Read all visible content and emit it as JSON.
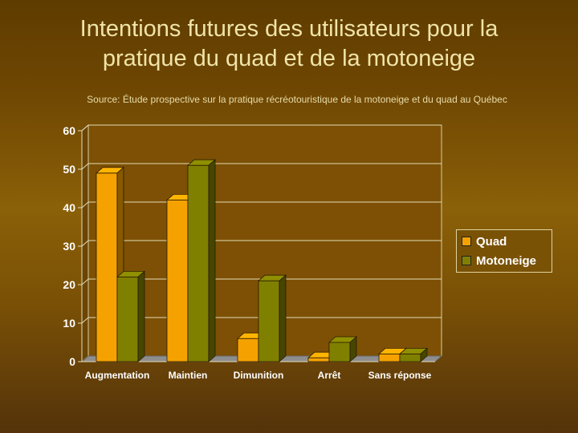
{
  "title_line1": "Intentions futures des utilisateurs pour la",
  "title_line2": "pratique du quad et de la motoneige",
  "source": "Source: Étude prospective sur la pratique récréotouristique de la motoneige et du quad au Québec",
  "legend": {
    "items": [
      "Quad",
      "Motoneige"
    ]
  },
  "colors": {
    "quad": "#f5a200",
    "motoneige": "#808000"
  },
  "chart_data": {
    "type": "bar",
    "title": "Intentions futures des utilisateurs pour la pratique du quad et de la motoneige",
    "categories": [
      "Augmentation",
      "Maintien",
      "Dimunition",
      "Arrêt",
      "Sans réponse"
    ],
    "series": [
      {
        "name": "Quad",
        "values": [
          49,
          42,
          6,
          1,
          2
        ]
      },
      {
        "name": "Motoneige",
        "values": [
          22,
          51,
          21,
          5,
          2
        ]
      }
    ],
    "yticks": [
      0,
      10,
      20,
      30,
      40,
      50,
      60
    ],
    "ylim": [
      0,
      60
    ],
    "grid": true,
    "legend_position": "right"
  }
}
